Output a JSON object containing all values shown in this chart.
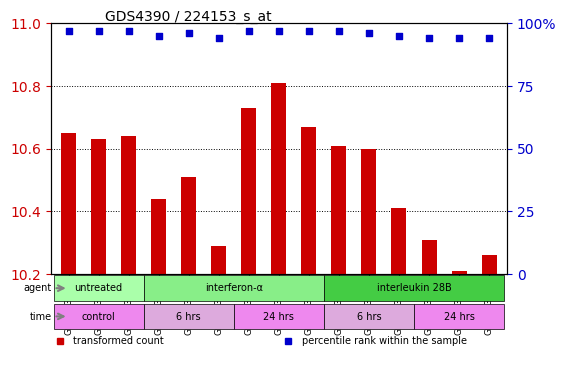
{
  "title": "GDS4390 / 224153_s_at",
  "categories": [
    "GSM773317",
    "GSM773318",
    "GSM773319",
    "GSM773323",
    "GSM773324",
    "GSM773325",
    "GSM773320",
    "GSM773321",
    "GSM773322",
    "GSM773329",
    "GSM773330",
    "GSM773331",
    "GSM773326",
    "GSM773327",
    "GSM773328"
  ],
  "bar_values": [
    10.65,
    10.63,
    10.64,
    10.44,
    10.51,
    10.29,
    10.73,
    10.81,
    10.67,
    10.61,
    10.6,
    10.41,
    10.31,
    10.21,
    10.26
  ],
  "dot_values": [
    97,
    97,
    97,
    95,
    96,
    94,
    97,
    97,
    97,
    97,
    96,
    95,
    94,
    94,
    94
  ],
  "bar_color": "#cc0000",
  "dot_color": "#0000cc",
  "ylim_left": [
    10.2,
    11.0
  ],
  "ylim_right": [
    0,
    100
  ],
  "yticks_left": [
    10.2,
    10.4,
    10.6,
    10.8,
    11.0
  ],
  "yticks_right": [
    0,
    25,
    50,
    75,
    100
  ],
  "ylabel_left_color": "#cc0000",
  "ylabel_right_color": "#0000cc",
  "agent_groups": [
    {
      "label": "untreated",
      "start": 0,
      "end": 3,
      "color": "#aaffaa"
    },
    {
      "label": "interferon-α",
      "start": 3,
      "end": 9,
      "color": "#88ee88"
    },
    {
      "label": "interleukin 28B",
      "start": 9,
      "end": 15,
      "color": "#44cc44"
    }
  ],
  "time_groups": [
    {
      "label": "control",
      "start": 0,
      "end": 3,
      "color": "#ee88ee"
    },
    {
      "label": "6 hrs",
      "start": 3,
      "end": 6,
      "color": "#ddaadd"
    },
    {
      "label": "24 hrs",
      "start": 6,
      "end": 9,
      "color": "#ee88ee"
    },
    {
      "label": "6 hrs",
      "start": 9,
      "end": 12,
      "color": "#ddaadd"
    },
    {
      "label": "24 hrs",
      "start": 12,
      "end": 15,
      "color": "#ee88ee"
    }
  ],
  "legend_items": [
    {
      "label": "transformed count",
      "color": "#cc0000",
      "marker": "s"
    },
    {
      "label": "percentile rank within the sample",
      "color": "#0000cc",
      "marker": "s"
    }
  ],
  "background_color": "#ffffff",
  "plot_bg_color": "#ffffff",
  "grid_color": "#000000",
  "tick_area_color": "#dddddd"
}
